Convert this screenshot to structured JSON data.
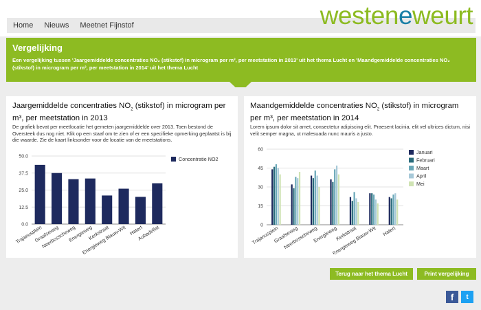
{
  "header": {
    "nav": [
      "Home",
      "Nieuws",
      "Meetnet Fijnstof"
    ],
    "logo": {
      "part1": "westen",
      "part2": "e",
      "part3": "weurt",
      "note_colors": {
        "green": "#8dbb22",
        "blue": "#1a7fa6"
      }
    }
  },
  "hero": {
    "title": "Vergelijking",
    "text": "Een vergelijking tussen 'Jaargemiddelde concentraties NO₂ (stikstof) in microgram per m³, per meetstation in 2013' uit het thema Lucht en 'Maandgemiddelde concentraties NO₂ (stikstof) in microgram per m³, per meetstation in 2014' uit het thema Lucht"
  },
  "panel1": {
    "title_a": "Jaargemiddelde concentraties NO",
    "title_sub": "2",
    "title_b": " (stikstof) in microgram per m³, per meetstation in 2013",
    "desc": "De grafiek bevat per meetlocatie het gemeten jaargemiddelde over 2013. Toen bestond de Oversteek dus nog niet. Klik op een staaf om te zien of er een specifieke opmerking geplaatst is bij die waarde. Zie de kaart linksonder voor de locatie van de meetstations."
  },
  "panel2": {
    "title_a": "Maandgemiddelde concentraties NO",
    "title_sub": "2",
    "title_b": " (stikstof) in microgram per m³, per meetstation in 2014",
    "desc": "Lorem ipsum dolor sit amet, consectetur adipiscing elit. Praesent lacinia, elit vel ultrices dictum, nisi velit semper magna, ut malesuada nunc mauris a justo."
  },
  "buttons": {
    "back": "Terug naar het thema Lucht",
    "print": "Print vergelijking"
  },
  "social": {
    "facebook": "f",
    "twitter": "t"
  },
  "chart_data": [
    {
      "type": "bar",
      "categories": [
        "Trajanusplein",
        "Graafseweg",
        "Neerbosscheweg",
        "Energieweg",
        "Kerkstraat",
        "Energieweg Blauw-Wit",
        "Hatert",
        "Aubadeflat"
      ],
      "series": [
        {
          "name": "Concentratie NO2",
          "values": [
            43.5,
            37.5,
            33,
            33.5,
            21,
            26,
            20,
            30
          ],
          "color": "#1e2a5e"
        }
      ],
      "yticks": [
        "0.0",
        "12.5",
        "25.0",
        "37.5",
        "50.0"
      ],
      "ylim": [
        0,
        50
      ]
    },
    {
      "type": "bar",
      "categories": [
        "Trajanusplein",
        "Graafseweg",
        "Neerbosscheweg",
        "Energieweg",
        "Kerkstraat",
        "Energieweg Blauw-Wit",
        "Hatert"
      ],
      "series": [
        {
          "name": "Januari",
          "values": [
            44,
            32,
            39,
            36,
            22,
            25,
            22
          ],
          "color": "#1e2a5e"
        },
        {
          "name": "Februari",
          "values": [
            46,
            29,
            37,
            34,
            19,
            25,
            21
          ],
          "color": "#2b6c7c"
        },
        {
          "name": "Maart",
          "values": [
            48,
            38,
            43,
            44,
            26,
            24,
            24
          ],
          "color": "#6aa8b8"
        },
        {
          "name": "April",
          "values": [
            45,
            37,
            39,
            47,
            21,
            20,
            25
          ],
          "color": "#a7c9d8"
        },
        {
          "name": "Mei",
          "values": [
            40,
            42,
            30,
            40,
            18,
            17,
            20
          ],
          "color": "#cfe3b3"
        }
      ],
      "yticks": [
        "0",
        "15",
        "30",
        "45",
        "60"
      ],
      "ylim": [
        0,
        60
      ]
    }
  ]
}
